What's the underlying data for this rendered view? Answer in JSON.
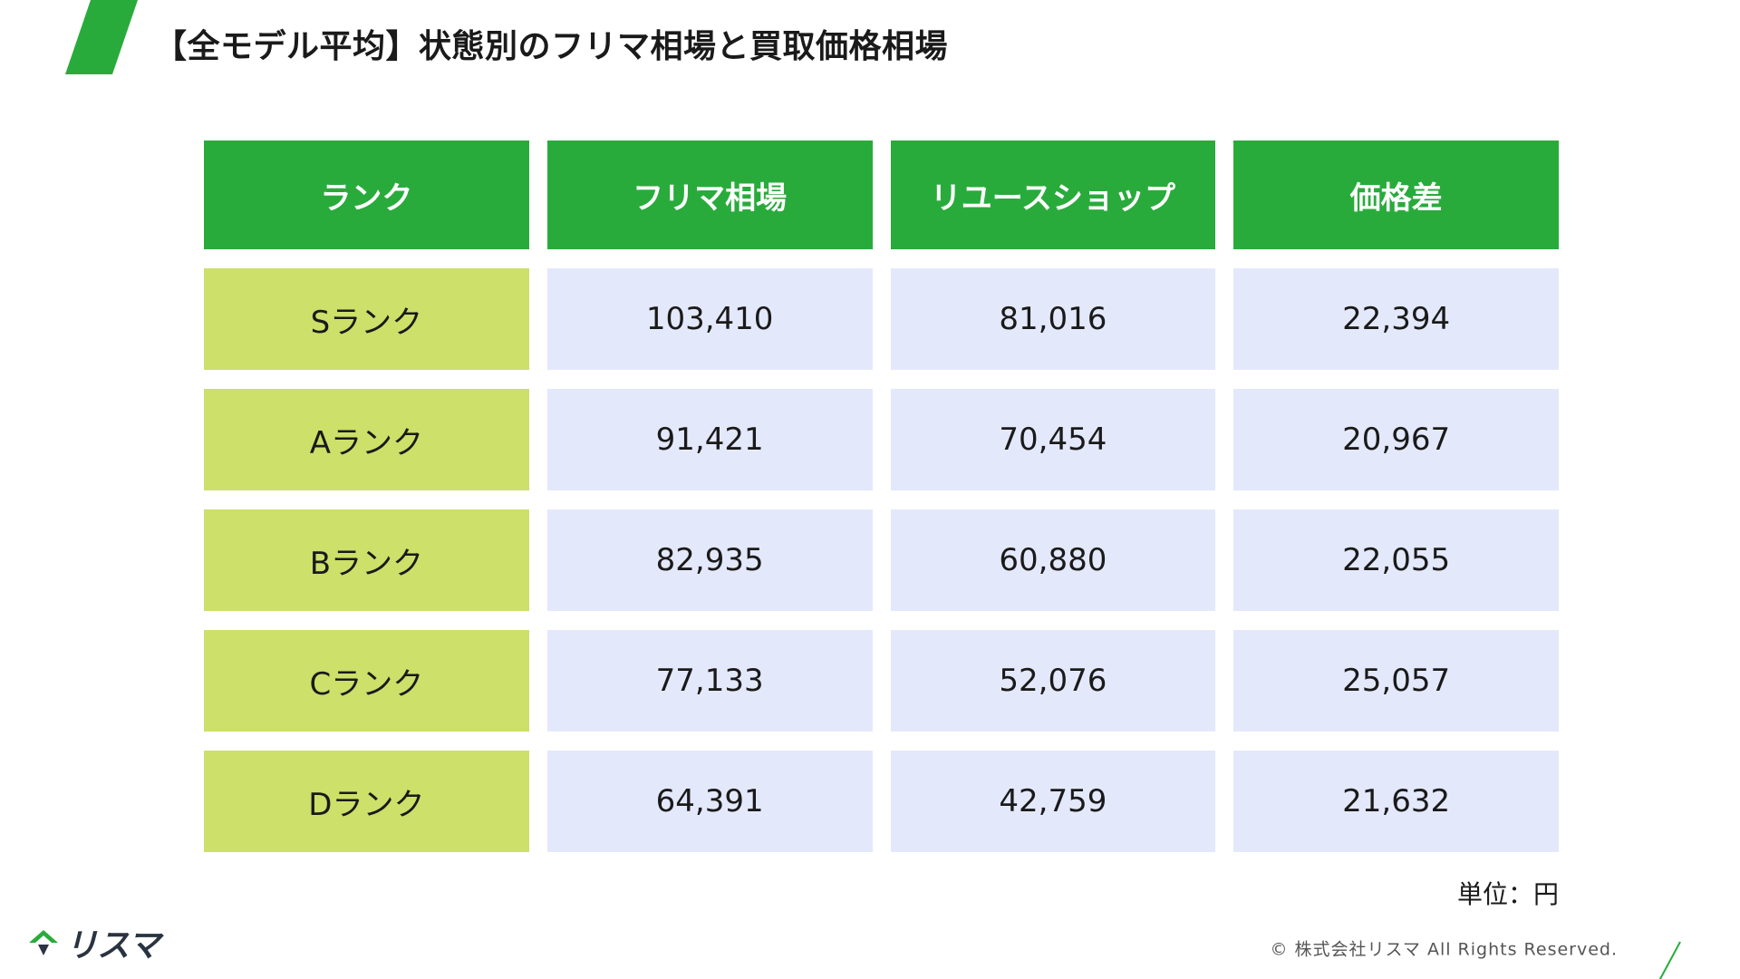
{
  "title": "【全モデル平均】状態別のフリマ相場と買取価格相場",
  "colors": {
    "accent": "#29ab3c",
    "rank_bg": "#cce06a",
    "value_bg": "#e4e8fb"
  },
  "table": {
    "headers": [
      "ランク",
      "フリマ相場",
      "リユースショップ",
      "価格差"
    ],
    "rows": [
      {
        "rank": "Sランク",
        "flea": "103,410",
        "reuse": "81,016",
        "diff": "22,394"
      },
      {
        "rank": "Aランク",
        "flea": "91,421",
        "reuse": "70,454",
        "diff": "20,967"
      },
      {
        "rank": "Bランク",
        "flea": "82,935",
        "reuse": "60,880",
        "diff": "22,055"
      },
      {
        "rank": "Cランク",
        "flea": "77,133",
        "reuse": "52,076",
        "diff": "25,057"
      },
      {
        "rank": "Dランク",
        "flea": "64,391",
        "reuse": "42,759",
        "diff": "21,632"
      }
    ]
  },
  "unit": "単位：円",
  "footer": {
    "logo_text": "リスマ",
    "copyright": "© 株式会社リスマ All Rights Reserved."
  }
}
